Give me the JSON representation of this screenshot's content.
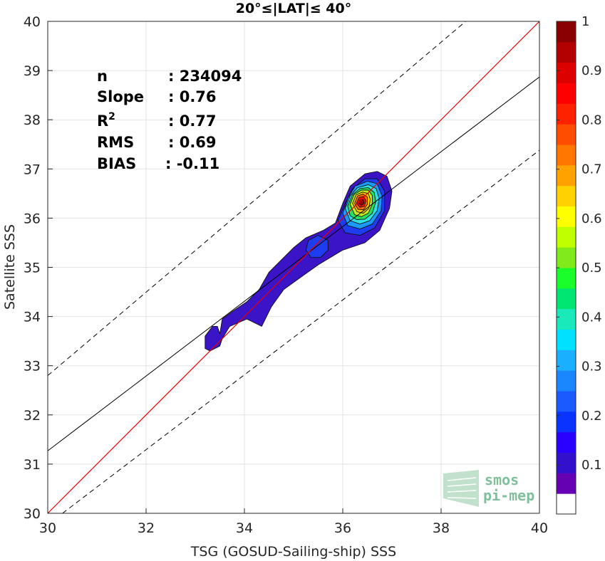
{
  "chart_data": {
    "type": "scatter",
    "title": "20°≤|LAT|≤ 40°",
    "xlabel": "TSG (GOSUD-Sailing-ship) SSS",
    "ylabel": "Satellite SSS",
    "xlim": [
      30,
      40
    ],
    "ylim": [
      30,
      40
    ],
    "xticks": [
      30,
      32,
      34,
      36,
      38,
      40
    ],
    "yticks": [
      30,
      31,
      32,
      33,
      34,
      35,
      36,
      37,
      38,
      39,
      40
    ],
    "grid": true,
    "stats": {
      "n_label": "n",
      "n_value": ": 234094",
      "slope_label": "Slope",
      "slope_value": ": 0.76",
      "r2_label": "R",
      "r2_sup": "2",
      "r2_value": ": 0.77",
      "rms_label": "RMS",
      "rms_value": ": 0.69",
      "bias_label": "BIAS",
      "bias_value": ": -0.11"
    },
    "lines": {
      "identity": {
        "x": [
          30,
          40
        ],
        "y": [
          30,
          40
        ],
        "color": "#e60000"
      },
      "fit": {
        "x": [
          30,
          40
        ],
        "y": [
          31.27,
          38.87
        ],
        "color": "#000000"
      },
      "upper_dashed": {
        "x": [
          30,
          38.5
        ],
        "y": [
          32.8,
          40
        ]
      },
      "lower_dashed": {
        "x": [
          30.3,
          40
        ],
        "y": [
          30,
          37.38
        ]
      }
    },
    "density_contours": [
      {
        "level": 0.05,
        "color": "#3b14c8",
        "points": [
          [
            33.2,
            33.35
          ],
          [
            33.2,
            33.6
          ],
          [
            33.35,
            33.8
          ],
          [
            33.45,
            33.8
          ],
          [
            33.5,
            33.65
          ],
          [
            33.55,
            33.95
          ],
          [
            33.75,
            34.1
          ],
          [
            34.05,
            34.3
          ],
          [
            34.3,
            34.55
          ],
          [
            34.5,
            34.9
          ],
          [
            34.7,
            35.1
          ],
          [
            35.0,
            35.4
          ],
          [
            35.25,
            35.6
          ],
          [
            35.6,
            35.75
          ],
          [
            35.85,
            35.9
          ],
          [
            36.0,
            36.3
          ],
          [
            36.15,
            36.65
          ],
          [
            36.45,
            36.9
          ],
          [
            36.7,
            36.95
          ],
          [
            36.9,
            36.85
          ],
          [
            37.0,
            36.55
          ],
          [
            36.95,
            36.2
          ],
          [
            36.75,
            35.75
          ],
          [
            36.45,
            35.5
          ],
          [
            36.0,
            35.35
          ],
          [
            35.5,
            35.05
          ],
          [
            35.15,
            34.8
          ],
          [
            34.8,
            34.55
          ],
          [
            34.55,
            34.2
          ],
          [
            34.35,
            33.8
          ],
          [
            34.05,
            33.95
          ],
          [
            33.7,
            33.8
          ],
          [
            33.55,
            33.55
          ],
          [
            33.5,
            33.4
          ],
          [
            33.3,
            33.3
          ]
        ]
      },
      {
        "level": 0.2,
        "color": "#1e3cf0",
        "points": [
          [
            35.25,
            35.35
          ],
          [
            35.3,
            35.55
          ],
          [
            35.5,
            35.65
          ],
          [
            35.7,
            35.55
          ],
          [
            35.7,
            35.35
          ],
          [
            35.55,
            35.2
          ],
          [
            35.35,
            35.2
          ]
        ]
      },
      {
        "level": 0.2,
        "color": "#1e3cf0",
        "points": [
          [
            35.9,
            35.95
          ],
          [
            36.05,
            36.3
          ],
          [
            36.2,
            36.6
          ],
          [
            36.45,
            36.8
          ],
          [
            36.7,
            36.8
          ],
          [
            36.85,
            36.55
          ],
          [
            36.85,
            36.15
          ],
          [
            36.65,
            35.8
          ],
          [
            36.35,
            35.65
          ],
          [
            36.05,
            35.7
          ]
        ]
      },
      {
        "level": 0.3,
        "color": "#1a9aff",
        "points": [
          [
            36.0,
            36.1
          ],
          [
            36.1,
            36.4
          ],
          [
            36.25,
            36.65
          ],
          [
            36.5,
            36.75
          ],
          [
            36.7,
            36.7
          ],
          [
            36.8,
            36.45
          ],
          [
            36.78,
            36.15
          ],
          [
            36.6,
            35.88
          ],
          [
            36.35,
            35.78
          ],
          [
            36.1,
            35.85
          ]
        ]
      },
      {
        "level": 0.4,
        "color": "#2fe0e0",
        "points": [
          [
            36.05,
            36.2
          ],
          [
            36.15,
            36.45
          ],
          [
            36.3,
            36.62
          ],
          [
            36.52,
            36.68
          ],
          [
            36.68,
            36.6
          ],
          [
            36.74,
            36.4
          ],
          [
            36.7,
            36.15
          ],
          [
            36.55,
            35.95
          ],
          [
            36.35,
            35.88
          ],
          [
            36.15,
            35.95
          ]
        ]
      },
      {
        "level": 0.5,
        "color": "#2ae060",
        "points": [
          [
            36.1,
            36.25
          ],
          [
            36.2,
            36.48
          ],
          [
            36.35,
            36.6
          ],
          [
            36.52,
            36.62
          ],
          [
            36.64,
            36.52
          ],
          [
            36.67,
            36.33
          ],
          [
            36.6,
            36.1
          ],
          [
            36.45,
            35.98
          ],
          [
            36.28,
            35.97
          ],
          [
            36.15,
            36.05
          ]
        ]
      },
      {
        "level": 0.6,
        "color": "#c4ea1a",
        "points": [
          [
            36.15,
            36.28
          ],
          [
            36.23,
            36.48
          ],
          [
            36.38,
            36.57
          ],
          [
            36.52,
            36.57
          ],
          [
            36.6,
            36.46
          ],
          [
            36.6,
            36.28
          ],
          [
            36.52,
            36.1
          ],
          [
            36.38,
            36.03
          ],
          [
            36.24,
            36.07
          ]
        ]
      },
      {
        "level": 0.7,
        "color": "#ffc400",
        "points": [
          [
            36.2,
            36.3
          ],
          [
            36.27,
            36.47
          ],
          [
            36.4,
            36.53
          ],
          [
            36.52,
            36.5
          ],
          [
            36.56,
            36.38
          ],
          [
            36.53,
            36.2
          ],
          [
            36.42,
            36.1
          ],
          [
            36.29,
            36.13
          ]
        ]
      },
      {
        "level": 0.8,
        "color": "#ff6a00",
        "points": [
          [
            36.24,
            36.3
          ],
          [
            36.3,
            36.45
          ],
          [
            36.41,
            36.49
          ],
          [
            36.5,
            36.43
          ],
          [
            36.5,
            36.28
          ],
          [
            36.42,
            36.17
          ],
          [
            36.31,
            36.18
          ]
        ]
      },
      {
        "level": 0.9,
        "color": "#e81010",
        "points": [
          [
            36.28,
            36.3
          ],
          [
            36.33,
            36.42
          ],
          [
            36.42,
            36.44
          ],
          [
            36.47,
            36.36
          ],
          [
            36.44,
            36.24
          ],
          [
            36.35,
            36.22
          ]
        ]
      },
      {
        "level": 1.0,
        "color": "#a00000",
        "points": [
          [
            36.31,
            36.31
          ],
          [
            36.36,
            36.38
          ],
          [
            36.42,
            36.37
          ],
          [
            36.43,
            36.3
          ],
          [
            36.38,
            36.26
          ]
        ]
      }
    ],
    "colorbar": {
      "ticks": [
        "0.1",
        "0.2",
        "0.3",
        "0.4",
        "0.5",
        "0.6",
        "0.7",
        "0.8",
        "0.9",
        "1"
      ],
      "colors": [
        "#ffffff",
        "#6600b3",
        "#3311cc",
        "#2a00ff",
        "#0b33ff",
        "#1a5aff",
        "#1a86ff",
        "#1ab0ff",
        "#00e0ff",
        "#1aeabb",
        "#00e673",
        "#1aff2a",
        "#80ea1a",
        "#bfff00",
        "#ffff00",
        "#ffd200",
        "#ffa200",
        "#ff7700",
        "#ff4d00",
        "#ff2200",
        "#ff0000",
        "#dd0000",
        "#b30000",
        "#8a0000"
      ]
    },
    "logo": {
      "line1": "smos",
      "line2": "pi-mep"
    }
  }
}
